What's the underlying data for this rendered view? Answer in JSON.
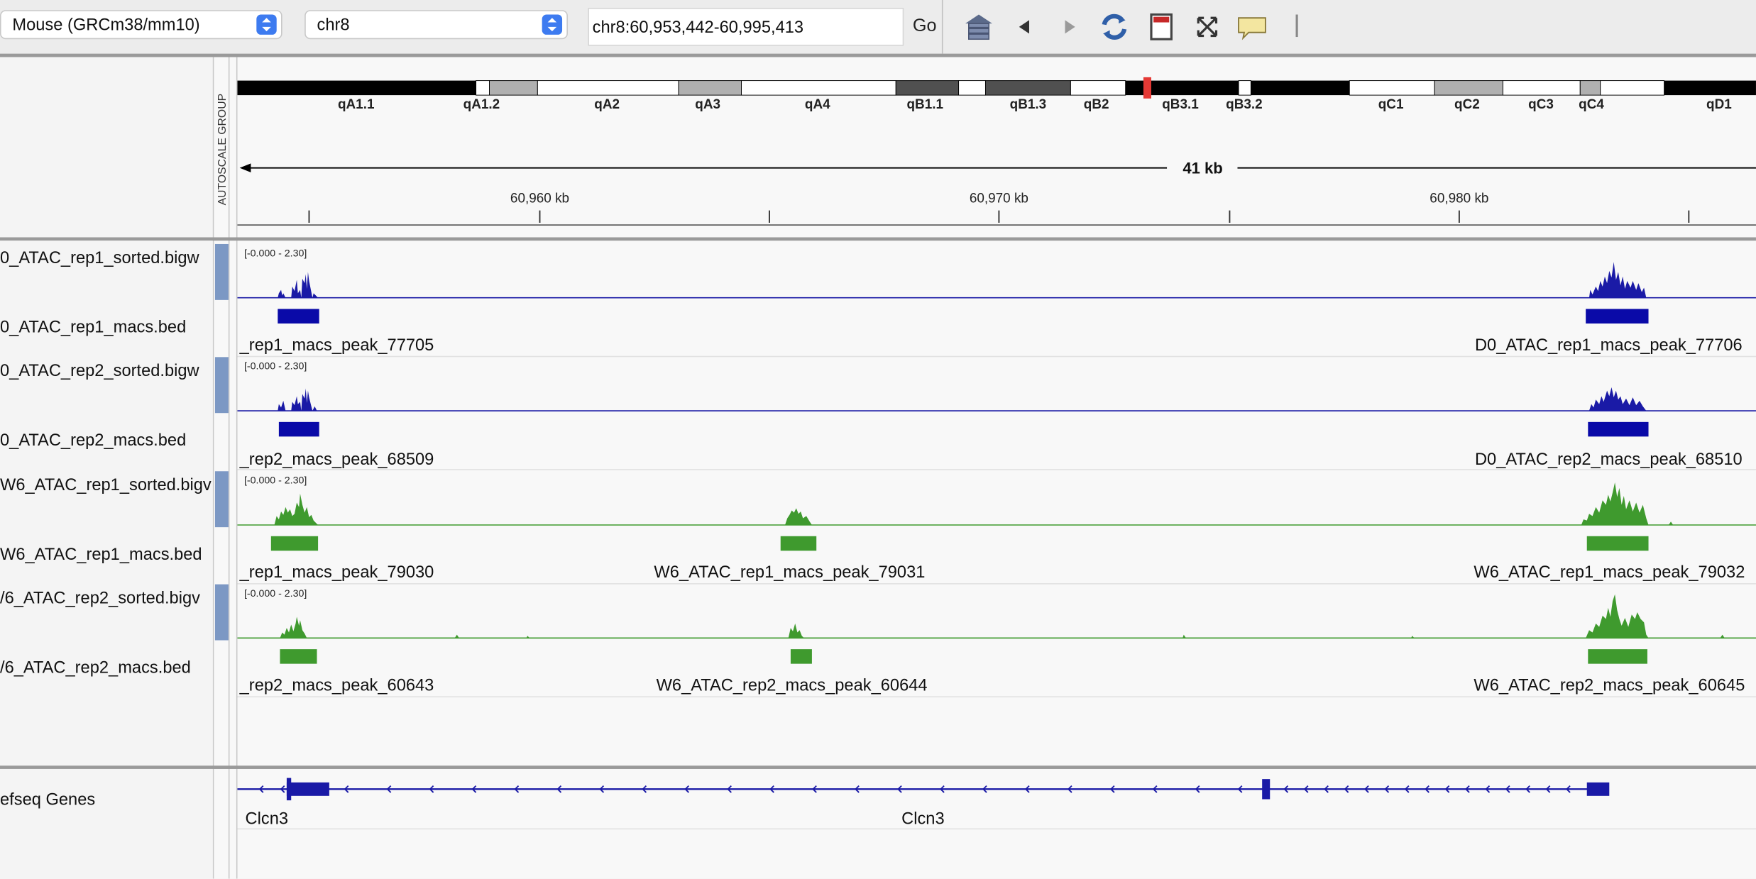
{
  "toolbar": {
    "genome": "Mouse (GRCm38/mm10)",
    "chromosome": "chr8",
    "locus": "chr8:60,953,442-60,995,413",
    "go_label": "Go",
    "icons": [
      "home-icon",
      "back-arrow-icon",
      "forward-arrow-icon",
      "refresh-icon",
      "roi-icon",
      "resize-to-fit-icon",
      "popup-info-icon"
    ]
  },
  "ideogram": {
    "bands": [
      "qA1.1",
      "qA1.2",
      "qA2",
      "qA3",
      "qA4",
      "qB1.1",
      "qB1.3",
      "qB2",
      "qB3.1",
      "qB3.2",
      "qC1",
      "qC2",
      "qC3",
      "qC4",
      "qD1"
    ]
  },
  "ruler": {
    "span_label": "41 kb",
    "ticks": [
      "60,960 kb",
      "60,970 kb",
      "60,980 kb"
    ]
  },
  "attribute_header": "AUTOSCALE GROUP",
  "tracks": [
    {
      "name": "0_ATAC_rep1_sorted.bigw",
      "scale": "[-0.000 - 2.30]",
      "color": "#1a1aa6"
    },
    {
      "name": "0_ATAC_rep1_macs.bed",
      "peaks": [
        "_rep1_macs_peak_77705",
        "D0_ATAC_rep1_macs_peak_77706"
      ],
      "color": "#0a0aa8"
    },
    {
      "name": "0_ATAC_rep2_sorted.bigw",
      "scale": "[-0.000 - 2.30]",
      "color": "#1a1aa6"
    },
    {
      "name": "0_ATAC_rep2_macs.bed",
      "peaks": [
        "_rep2_macs_peak_68509",
        "D0_ATAC_rep2_macs_peak_68510"
      ],
      "color": "#0a0aa8"
    },
    {
      "name": "6_ATAC_rep1_sorted.bigv",
      "scale": "[-0.000 - 2.30]",
      "color": "#3f9a2e",
      "prefix": "W"
    },
    {
      "name": "6_ATAC_rep1_macs.bed",
      "peaks": [
        "_rep1_macs_peak_79030",
        "W6_ATAC_rep1_macs_peak_79031",
        "W6_ATAC_rep1_macs_peak_79032"
      ],
      "color": "#3f9a2e",
      "prefix": "W"
    },
    {
      "name": "6_ATAC_rep2_sorted.bigv",
      "scale": "[-0.000 - 2.30]",
      "color": "#3f9a2e",
      "prefix": "/"
    },
    {
      "name": "6_ATAC_rep2_macs.bed",
      "peaks": [
        "_rep2_macs_peak_60643",
        "W6_ATAC_rep2_macs_peak_60644",
        "W6_ATAC_rep2_macs_peak_60645"
      ],
      "color": "#3f9a2e",
      "prefix": "/"
    }
  ],
  "gene_track": {
    "name": "efseq Genes",
    "genes": [
      "Clcn3",
      "Clcn3"
    ]
  }
}
